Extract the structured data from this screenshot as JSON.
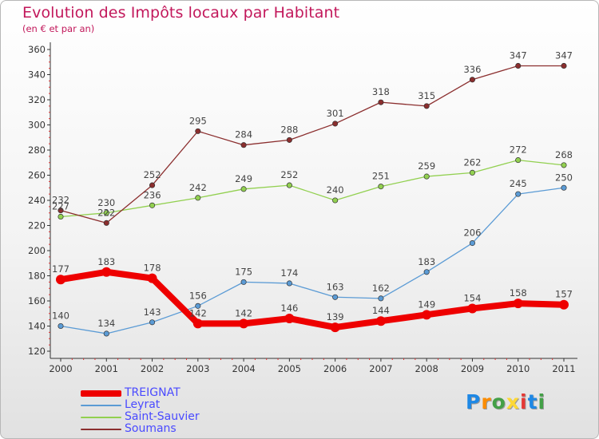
{
  "chart_data": {
    "type": "line",
    "title": "Evolution des Impôts locaux par Habitant",
    "subtitle": "(en € et par an)",
    "x": [
      "2000",
      "2001",
      "2002",
      "2003",
      "2004",
      "2005",
      "2006",
      "2007",
      "2008",
      "2009",
      "2010",
      "2011"
    ],
    "ylim": [
      120,
      360
    ],
    "yticks": [
      120,
      140,
      160,
      180,
      200,
      220,
      240,
      260,
      280,
      300,
      320,
      340,
      360
    ],
    "grid": false,
    "legend_position": "bottom-left",
    "series": [
      {
        "name": "TREIGNAT",
        "color": "#ee0000",
        "values": [
          177,
          183,
          178,
          142,
          142,
          146,
          139,
          144,
          149,
          154,
          158,
          157
        ]
      },
      {
        "name": "Leyrat",
        "color": "#5b9bd5",
        "values": [
          140,
          134,
          143,
          156,
          175,
          174,
          163,
          162,
          183,
          206,
          245,
          250
        ]
      },
      {
        "name": "Saint-Sauvier",
        "color": "#92d050",
        "values": [
          227,
          230,
          236,
          242,
          249,
          252,
          240,
          251,
          259,
          262,
          272,
          268
        ]
      },
      {
        "name": "Soumans",
        "color": "#8b2e2e",
        "values": [
          232,
          222,
          252,
          295,
          284,
          288,
          301,
          318,
          315,
          336,
          347,
          347
        ]
      }
    ]
  },
  "logo": {
    "letters": [
      "P",
      "r",
      "o",
      "x",
      "i",
      "t",
      "i"
    ],
    "colors": [
      "#1e88e5",
      "#fb8c00",
      "#43a047",
      "#fdd835",
      "#e53935",
      "#1e88e5",
      "#43a047"
    ]
  }
}
